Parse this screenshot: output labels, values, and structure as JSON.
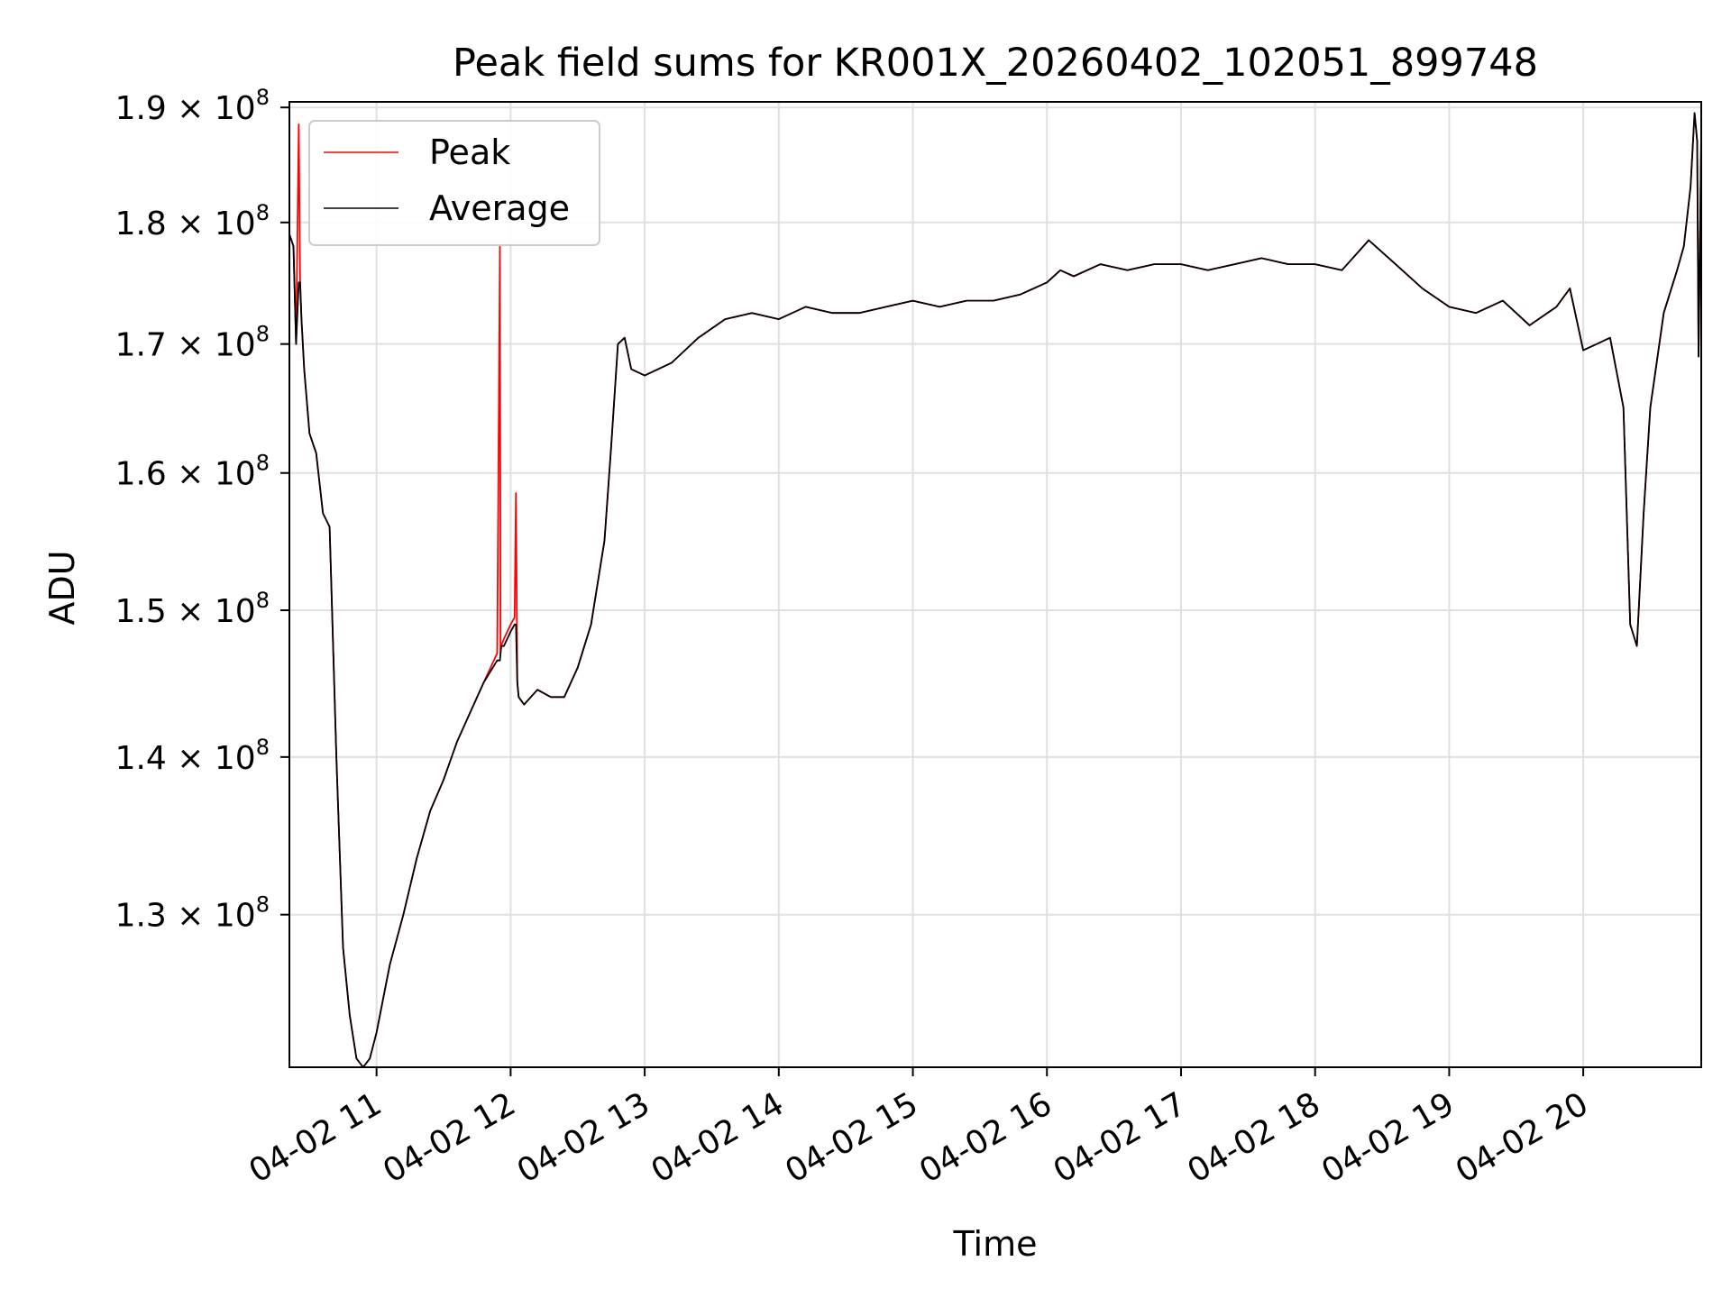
{
  "chart_data": {
    "type": "line",
    "title": "Peak field sums for KR001X_20260402_102051_899748",
    "xlabel": "Time",
    "ylabel": "ADU",
    "yscale": "log",
    "grid": true,
    "legend_position": "top-left",
    "xlim": [
      10.35,
      20.88
    ],
    "ylim": [
      121000000,
      190500000
    ],
    "x_ticks": [
      {
        "value": 11,
        "label": "04-02 11"
      },
      {
        "value": 12,
        "label": "04-02 12"
      },
      {
        "value": 13,
        "label": "04-02 13"
      },
      {
        "value": 14,
        "label": "04-02 14"
      },
      {
        "value": 15,
        "label": "04-02 15"
      },
      {
        "value": 16,
        "label": "04-02 16"
      },
      {
        "value": 17,
        "label": "04-02 17"
      },
      {
        "value": 18,
        "label": "04-02 18"
      },
      {
        "value": 19,
        "label": "04-02 19"
      },
      {
        "value": 20,
        "label": "04-02 20"
      }
    ],
    "y_ticks": [
      {
        "value": 130000000,
        "mantissa": "1.3",
        "base": "10",
        "exponent": "8"
      },
      {
        "value": 140000000,
        "mantissa": "1.4",
        "base": "10",
        "exponent": "8"
      },
      {
        "value": 150000000,
        "mantissa": "1.5",
        "base": "10",
        "exponent": "8"
      },
      {
        "value": 160000000,
        "mantissa": "1.6",
        "base": "10",
        "exponent": "8"
      },
      {
        "value": 170000000,
        "mantissa": "1.7",
        "base": "10",
        "exponent": "8"
      },
      {
        "value": 180000000,
        "mantissa": "1.8",
        "base": "10",
        "exponent": "8"
      },
      {
        "value": 190000000,
        "mantissa": "1.9",
        "base": "10",
        "exponent": "8"
      }
    ],
    "series": [
      {
        "name": "Peak",
        "color": "#ff0000",
        "x": [
          10.35,
          10.38,
          10.4,
          10.42,
          10.43,
          10.44,
          10.45,
          10.46,
          10.5,
          10.55,
          10.6,
          10.65,
          10.7,
          10.75,
          10.8,
          10.85,
          10.9,
          10.95,
          11.0,
          11.05,
          11.1,
          11.2,
          11.3,
          11.4,
          11.5,
          11.6,
          11.7,
          11.8,
          11.9,
          11.92,
          11.925,
          11.93,
          11.95,
          12.0,
          12.03,
          12.04,
          12.05,
          12.06,
          12.1,
          12.2,
          12.3,
          12.4,
          12.5,
          12.6,
          12.7,
          12.75,
          12.8,
          12.85,
          12.9,
          13.0,
          13.2,
          13.4,
          13.6,
          13.8,
          14.0,
          14.2,
          14.4,
          14.6,
          14.8,
          15.0,
          15.2,
          15.4,
          15.6,
          15.8,
          16.0,
          16.1,
          16.2,
          16.4,
          16.6,
          16.8,
          17.0,
          17.2,
          17.4,
          17.6,
          17.8,
          18.0,
          18.2,
          18.4,
          18.6,
          18.8,
          19.0,
          19.2,
          19.4,
          19.6,
          19.8,
          19.9,
          20.0,
          20.1,
          20.2,
          20.3,
          20.35,
          20.4,
          20.45,
          20.5,
          20.6,
          20.7,
          20.75,
          20.8,
          20.83,
          20.85,
          20.86,
          20.88
        ],
        "values": [
          179000000,
          178000000,
          170000000,
          188500000,
          175000000,
          172000000,
          170000000,
          168000000,
          163000000,
          161500000,
          157000000,
          156000000,
          140000000,
          128000000,
          124000000,
          121500000,
          121000000,
          121500000,
          123000000,
          125000000,
          127000000,
          130000000,
          133500000,
          136500000,
          138500000,
          141000000,
          143000000,
          145000000,
          147000000,
          178000000,
          147000000,
          147500000,
          148000000,
          149000000,
          149500000,
          158500000,
          145000000,
          144000000,
          143500000,
          144500000,
          144000000,
          144000000,
          146000000,
          149000000,
          155000000,
          162000000,
          170000000,
          170500000,
          168000000,
          167500000,
          168500000,
          170500000,
          172000000,
          172500000,
          172000000,
          173000000,
          172500000,
          172500000,
          173000000,
          173500000,
          173000000,
          173500000,
          173500000,
          174000000,
          175000000,
          176000000,
          175500000,
          176500000,
          176000000,
          176500000,
          176500000,
          176000000,
          176500000,
          177000000,
          176500000,
          176500000,
          176000000,
          178500000,
          176500000,
          174500000,
          173000000,
          172500000,
          173500000,
          171500000,
          173000000,
          174500000,
          169500000,
          170000000,
          170500000,
          165000000,
          149000000,
          147500000,
          157000000,
          165000000,
          172500000,
          176000000,
          178000000,
          183000000,
          189500000,
          187000000,
          169000000,
          187500000
        ]
      },
      {
        "name": "Average",
        "color": "#000000",
        "x": [
          10.35,
          10.38,
          10.4,
          10.42,
          10.43,
          10.44,
          10.45,
          10.46,
          10.5,
          10.55,
          10.6,
          10.65,
          10.7,
          10.75,
          10.8,
          10.85,
          10.9,
          10.95,
          11.0,
          11.05,
          11.1,
          11.2,
          11.3,
          11.4,
          11.5,
          11.6,
          11.7,
          11.8,
          11.9,
          11.92,
          11.925,
          11.93,
          11.95,
          12.0,
          12.03,
          12.04,
          12.05,
          12.06,
          12.1,
          12.2,
          12.3,
          12.4,
          12.5,
          12.6,
          12.7,
          12.75,
          12.8,
          12.85,
          12.9,
          13.0,
          13.2,
          13.4,
          13.6,
          13.8,
          14.0,
          14.2,
          14.4,
          14.6,
          14.8,
          15.0,
          15.2,
          15.4,
          15.6,
          15.8,
          16.0,
          16.1,
          16.2,
          16.4,
          16.6,
          16.8,
          17.0,
          17.2,
          17.4,
          17.6,
          17.8,
          18.0,
          18.2,
          18.4,
          18.6,
          18.8,
          19.0,
          19.2,
          19.4,
          19.6,
          19.8,
          19.9,
          20.0,
          20.1,
          20.2,
          20.3,
          20.35,
          20.4,
          20.45,
          20.5,
          20.6,
          20.7,
          20.75,
          20.8,
          20.83,
          20.85,
          20.86,
          20.88
        ],
        "values": [
          179000000,
          178000000,
          170000000,
          175000000,
          175000000,
          172000000,
          170000000,
          168000000,
          163000000,
          161500000,
          157000000,
          156000000,
          140000000,
          128000000,
          124000000,
          121500000,
          121000000,
          121500000,
          123000000,
          125000000,
          127000000,
          130000000,
          133500000,
          136500000,
          138500000,
          141000000,
          143000000,
          145000000,
          146500000,
          146500000,
          147000000,
          147500000,
          147500000,
          148500000,
          149000000,
          149000000,
          145000000,
          144000000,
          143500000,
          144500000,
          144000000,
          144000000,
          146000000,
          149000000,
          155000000,
          162000000,
          170000000,
          170500000,
          168000000,
          167500000,
          168500000,
          170500000,
          172000000,
          172500000,
          172000000,
          173000000,
          172500000,
          172500000,
          173000000,
          173500000,
          173000000,
          173500000,
          173500000,
          174000000,
          175000000,
          176000000,
          175500000,
          176500000,
          176000000,
          176500000,
          176500000,
          176000000,
          176500000,
          177000000,
          176500000,
          176500000,
          176000000,
          178500000,
          176500000,
          174500000,
          173000000,
          172500000,
          173500000,
          171500000,
          173000000,
          174500000,
          169500000,
          170000000,
          170500000,
          165000000,
          149000000,
          147500000,
          157000000,
          165000000,
          172500000,
          176000000,
          178000000,
          183000000,
          189500000,
          187000000,
          169000000,
          187500000
        ]
      }
    ]
  }
}
